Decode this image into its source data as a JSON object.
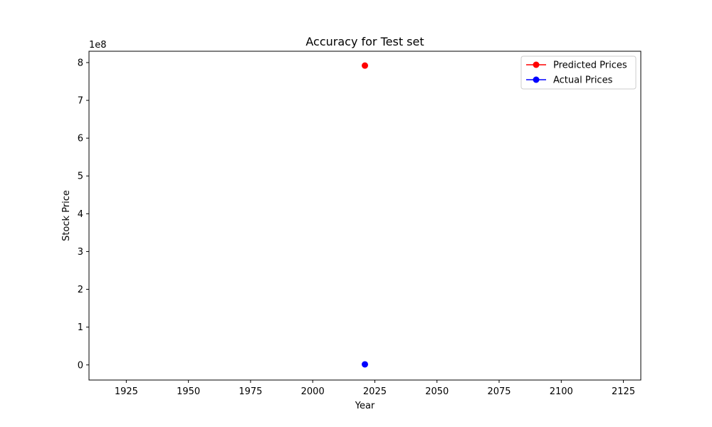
{
  "chart_data": {
    "type": "scatter",
    "title": "Accuracy for Test set",
    "xlabel": "Year",
    "ylabel": "Stock Price",
    "y_offset_label": "1e8",
    "xlim": [
      1910,
      2132
    ],
    "ylim": [
      -40000000,
      830000000
    ],
    "xticks": [
      1925,
      1950,
      1975,
      2000,
      2025,
      2050,
      2075,
      2100,
      2125
    ],
    "yticks": [
      0,
      100000000,
      200000000,
      300000000,
      400000000,
      500000000,
      600000000,
      700000000,
      800000000
    ],
    "ytick_labels": [
      "0",
      "1",
      "2",
      "3",
      "4",
      "5",
      "6",
      "7",
      "8"
    ],
    "grid": false,
    "legend_position": "top-right",
    "series": [
      {
        "name": "Predicted Prices",
        "color": "#ff0000",
        "marker": "circle",
        "points": [
          {
            "x": 2021,
            "y": 792000000
          }
        ]
      },
      {
        "name": "Actual Prices",
        "color": "#0000ff",
        "marker": "circle",
        "points": [
          {
            "x": 2021,
            "y": 1500000
          }
        ]
      }
    ]
  }
}
